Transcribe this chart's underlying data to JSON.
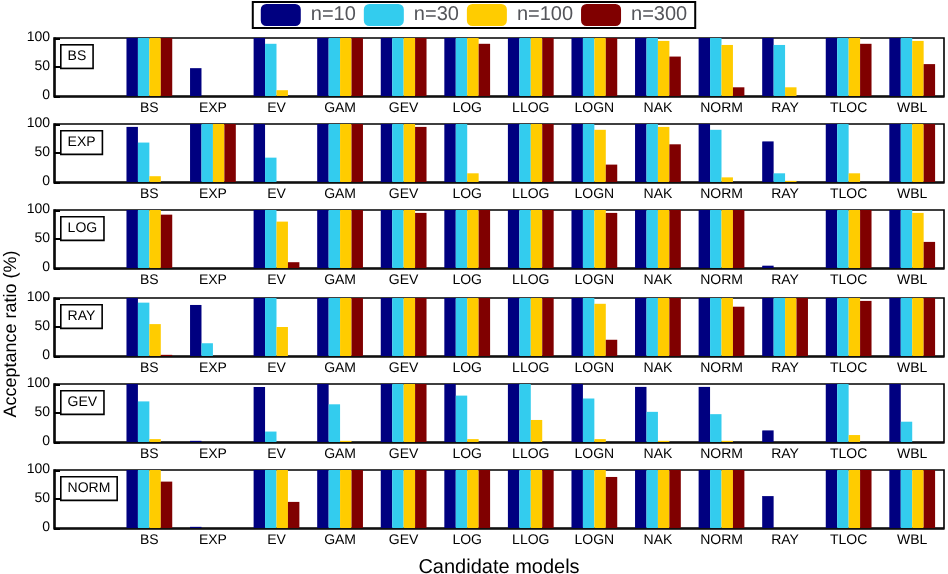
{
  "chart_data": [
    {
      "type": "bar",
      "annotations": [
        "BS"
      ],
      "legend": "top",
      "categories": [
        "BS",
        "EXP",
        "EV",
        "GAM",
        "GEV",
        "LOG",
        "LLOG",
        "LOGN",
        "NAK",
        "NORM",
        "RAY",
        "TLOC",
        "WBL"
      ],
      "ylim": [
        0,
        100
      ],
      "yticks": [
        0,
        50,
        100
      ],
      "grid": false,
      "series": [
        {
          "name": "n=10",
          "color": "#000080",
          "values": [
            100,
            48,
            100,
            100,
            100,
            100,
            100,
            100,
            100,
            100,
            100,
            100,
            100
          ]
        },
        {
          "name": "n=30",
          "color": "#33ccee",
          "values": [
            100,
            0,
            90,
            100,
            100,
            100,
            100,
            100,
            100,
            100,
            88,
            100,
            100
          ]
        },
        {
          "name": "n=100",
          "color": "#ffcc00",
          "values": [
            100,
            0,
            10,
            100,
            100,
            100,
            100,
            100,
            95,
            88,
            15,
            100,
            95
          ]
        },
        {
          "name": "n=300",
          "color": "#800000",
          "values": [
            100,
            0,
            0,
            100,
            100,
            90,
            100,
            100,
            68,
            15,
            0,
            90,
            55
          ]
        }
      ]
    },
    {
      "type": "bar",
      "annotations": [
        "EXP"
      ],
      "categories": [
        "BS",
        "EXP",
        "EV",
        "GAM",
        "GEV",
        "LOG",
        "LLOG",
        "LOGN",
        "NAK",
        "NORM",
        "RAY",
        "TLOC",
        "WBL"
      ],
      "ylim": [
        0,
        100
      ],
      "yticks": [
        0,
        50,
        100
      ],
      "grid": false,
      "series": [
        {
          "color": "#000080",
          "values": [
            95,
            100,
            100,
            100,
            100,
            100,
            100,
            100,
            100,
            100,
            70,
            100,
            100
          ]
        },
        {
          "color": "#33ccee",
          "values": [
            68,
            100,
            42,
            100,
            100,
            100,
            100,
            100,
            100,
            90,
            15,
            100,
            100
          ]
        },
        {
          "color": "#ffcc00",
          "values": [
            10,
            100,
            0,
            100,
            100,
            15,
            100,
            90,
            95,
            8,
            2,
            15,
            100
          ]
        },
        {
          "color": "#800000",
          "values": [
            0,
            100,
            0,
            100,
            95,
            0,
            100,
            30,
            65,
            0,
            0,
            0,
            100
          ]
        }
      ]
    },
    {
      "type": "bar",
      "annotations": [
        "LOG"
      ],
      "categories": [
        "BS",
        "EXP",
        "EV",
        "GAM",
        "GEV",
        "LOG",
        "LLOG",
        "LOGN",
        "NAK",
        "NORM",
        "RAY",
        "TLOC",
        "WBL"
      ],
      "ylim": [
        0,
        100
      ],
      "yticks": [
        0,
        50,
        100
      ],
      "grid": false,
      "series": [
        {
          "color": "#000080",
          "values": [
            100,
            0,
            100,
            100,
            100,
            100,
            100,
            100,
            100,
            100,
            4,
            100,
            100
          ]
        },
        {
          "color": "#33ccee",
          "values": [
            100,
            0,
            100,
            100,
            100,
            100,
            100,
            100,
            100,
            100,
            0,
            100,
            100
          ]
        },
        {
          "color": "#ffcc00",
          "values": [
            100,
            0,
            80,
            100,
            100,
            100,
            100,
            100,
            100,
            100,
            0,
            100,
            95
          ]
        },
        {
          "color": "#800000",
          "values": [
            92,
            0,
            10,
            100,
            95,
            100,
            100,
            95,
            100,
            100,
            0,
            100,
            45
          ]
        }
      ]
    },
    {
      "type": "bar",
      "annotations": [
        "RAY"
      ],
      "ylabel": "Acceptance ratio (%)",
      "categories": [
        "BS",
        "EXP",
        "EV",
        "GAM",
        "GEV",
        "LOG",
        "LLOG",
        "LOGN",
        "NAK",
        "NORM",
        "RAY",
        "TLOC",
        "WBL"
      ],
      "ylim": [
        0,
        100
      ],
      "yticks": [
        0,
        50,
        100
      ],
      "grid": false,
      "series": [
        {
          "color": "#000080",
          "values": [
            100,
            88,
            100,
            100,
            100,
            100,
            100,
            100,
            100,
            100,
            100,
            100,
            100
          ]
        },
        {
          "color": "#33ccee",
          "values": [
            92,
            22,
            100,
            100,
            100,
            100,
            100,
            100,
            100,
            100,
            100,
            100,
            100
          ]
        },
        {
          "color": "#ffcc00",
          "values": [
            55,
            0,
            50,
            100,
            100,
            100,
            100,
            90,
            100,
            100,
            100,
            100,
            100
          ]
        },
        {
          "color": "#800000",
          "values": [
            2,
            0,
            0,
            100,
            100,
            100,
            100,
            28,
            100,
            85,
            100,
            95,
            100
          ]
        }
      ]
    },
    {
      "type": "bar",
      "annotations": [
        "GEV"
      ],
      "categories": [
        "BS",
        "EXP",
        "EV",
        "GAM",
        "GEV",
        "LOG",
        "LLOG",
        "LOGN",
        "NAK",
        "NORM",
        "RAY",
        "TLOC",
        "WBL"
      ],
      "ylim": [
        0,
        100
      ],
      "yticks": [
        0,
        50,
        100
      ],
      "grid": false,
      "series": [
        {
          "color": "#000080",
          "values": [
            100,
            2,
            95,
            100,
            100,
            100,
            100,
            100,
            95,
            95,
            20,
            100,
            100
          ]
        },
        {
          "color": "#33ccee",
          "values": [
            70,
            0,
            18,
            65,
            100,
            80,
            100,
            75,
            52,
            48,
            0,
            100,
            35
          ]
        },
        {
          "color": "#ffcc00",
          "values": [
            5,
            0,
            0,
            2,
            100,
            5,
            38,
            5,
            2,
            2,
            0,
            12,
            0
          ]
        },
        {
          "color": "#800000",
          "values": [
            0,
            0,
            0,
            0,
            100,
            0,
            0,
            0,
            0,
            0,
            0,
            0,
            0
          ]
        }
      ]
    },
    {
      "type": "bar",
      "annotations": [
        "NORM"
      ],
      "xlabel": "Candidate models",
      "categories": [
        "BS",
        "EXP",
        "EV",
        "GAM",
        "GEV",
        "LOG",
        "LLOG",
        "LOGN",
        "NAK",
        "NORM",
        "RAY",
        "TLOC",
        "WBL"
      ],
      "ylim": [
        0,
        100
      ],
      "yticks": [
        0,
        50,
        100
      ],
      "grid": false,
      "series": [
        {
          "color": "#000080",
          "values": [
            100,
            2,
            100,
            100,
            100,
            100,
            100,
            100,
            100,
            100,
            55,
            100,
            100
          ]
        },
        {
          "color": "#33ccee",
          "values": [
            100,
            0,
            100,
            100,
            100,
            100,
            100,
            100,
            100,
            100,
            0,
            100,
            100
          ]
        },
        {
          "color": "#ffcc00",
          "values": [
            100,
            0,
            100,
            100,
            100,
            100,
            100,
            100,
            100,
            100,
            0,
            100,
            100
          ]
        },
        {
          "color": "#800000",
          "values": [
            80,
            0,
            45,
            100,
            100,
            100,
            100,
            88,
            100,
            100,
            0,
            100,
            100
          ]
        }
      ]
    }
  ]
}
